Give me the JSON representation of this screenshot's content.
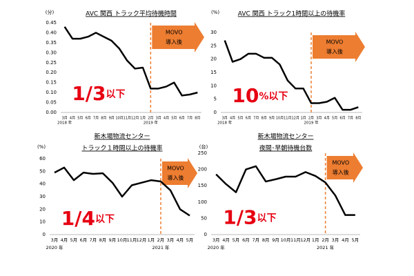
{
  "chart_data": [
    {
      "type": "line",
      "title": "AVC 関西 トラック平均待機時間",
      "y_unit": "(分)",
      "categories": [
        "3月",
        "4月",
        "5月",
        "6月",
        "7月",
        "8月",
        "9月",
        "10月",
        "11月",
        "12月",
        "1月",
        "2月",
        "3月",
        "4月",
        "5月",
        "6月",
        "7月",
        "8月"
      ],
      "values": [
        0.43,
        0.37,
        0.37,
        0.38,
        0.4,
        0.38,
        0.36,
        0.32,
        0.26,
        0.22,
        0.225,
        0.12,
        0.12,
        0.13,
        0.15,
        0.085,
        0.09,
        0.1
      ],
      "years": [
        "2018 年",
        "2019 年"
      ],
      "color": "#000000",
      "ylim": [
        0,
        0.45
      ],
      "yticks": [
        {
          "value": 0,
          "label": "0.00"
        },
        {
          "value": 0.05,
          "label": "0.05"
        },
        {
          "value": 0.1,
          "label": "0.10"
        },
        {
          "value": 0.15,
          "label": "0.15"
        },
        {
          "value": 0.2,
          "label": "0.20"
        },
        {
          "value": 0.25,
          "label": "0.25"
        },
        {
          "value": 0.3,
          "label": "0.30"
        },
        {
          "value": 0.35,
          "label": "0.35"
        },
        {
          "value": 0.4,
          "label": "0.40"
        },
        {
          "value": 0.45,
          "label": "0.45"
        }
      ],
      "event": {
        "category": "2月",
        "label": [
          "MOVO",
          "導入後"
        ],
        "color": "#ed7d31"
      },
      "callout": {
        "main": "1/3",
        "suffix": "以下",
        "color": "#e60012"
      }
    },
    {
      "type": "line",
      "title": "AVC 関西 トラック1時間以上の待機率",
      "y_unit": "(%)",
      "categories": [
        "3月",
        "4月",
        "5月",
        "6月",
        "7月",
        "8月",
        "9月",
        "10月",
        "11月",
        "12月",
        "1月",
        "2月",
        "3月",
        "4月",
        "5月",
        "6月",
        "7月",
        "8月"
      ],
      "values": [
        27,
        19,
        20,
        22,
        22,
        20.5,
        20.5,
        18,
        12,
        9,
        9,
        3.5,
        3.5,
        4,
        5.5,
        1,
        1,
        2
      ],
      "years": [
        "2018 年",
        "2019 年"
      ],
      "color": "#000000",
      "ylim": [
        0,
        30
      ],
      "yticks": [
        0,
        5,
        10,
        15,
        20,
        25,
        30
      ],
      "event": {
        "category": "2月",
        "label": [
          "MOVO",
          "導入後"
        ],
        "color": "#ed7d31"
      },
      "callout": {
        "main": "10",
        "suffix": "%以下",
        "color": "#e60012"
      }
    },
    {
      "type": "line",
      "title": "新木場物流センター",
      "subtitle": "トラック１時間以上の待機率",
      "y_unit": "(%)",
      "categories": [
        "3月",
        "4月",
        "5月",
        "6月",
        "7月",
        "8月",
        "9月",
        "10月",
        "11月",
        "12月",
        "1月",
        "2月",
        "3月",
        "4月",
        "5月"
      ],
      "values": [
        49,
        53,
        43,
        49,
        48,
        48.5,
        41,
        30,
        39,
        41,
        43,
        42,
        35,
        20,
        15
      ],
      "years": [
        "2020 年",
        "2021 年"
      ],
      "color": "#000000",
      "ylim": [
        0,
        60
      ],
      "yticks": [
        0,
        10,
        20,
        30,
        40,
        50,
        60
      ],
      "event": {
        "category": "2月",
        "label": [
          "MOVO",
          "導入後"
        ],
        "color": "#ed7d31"
      },
      "callout": {
        "main": "1/4",
        "suffix": "以下",
        "color": "#e60012"
      }
    },
    {
      "type": "line",
      "title": "新木場物流センター",
      "subtitle": "夜間･早朝待機台数",
      "y_unit": "(台)",
      "categories": [
        "3月",
        "4月",
        "5月",
        "6月",
        "7月",
        "8月",
        "9月",
        "10月",
        "11月",
        "12月",
        "1月",
        "2月",
        "3月",
        "4月",
        "5月"
      ],
      "values": [
        185,
        155,
        130,
        200,
        210,
        163,
        170,
        178,
        178,
        192,
        180,
        160,
        120,
        60,
        60
      ],
      "years": [
        "2020 年",
        "2021 年"
      ],
      "color": "#000000",
      "ylim": [
        0,
        250
      ],
      "yticks": [
        0,
        50,
        100,
        150,
        200,
        250
      ],
      "event": {
        "category": "2月",
        "label": [
          "MOVO",
          "導入後"
        ],
        "color": "#ed7d31"
      },
      "callout": {
        "main": "1/3",
        "suffix": "以下",
        "color": "#e60012"
      }
    }
  ]
}
